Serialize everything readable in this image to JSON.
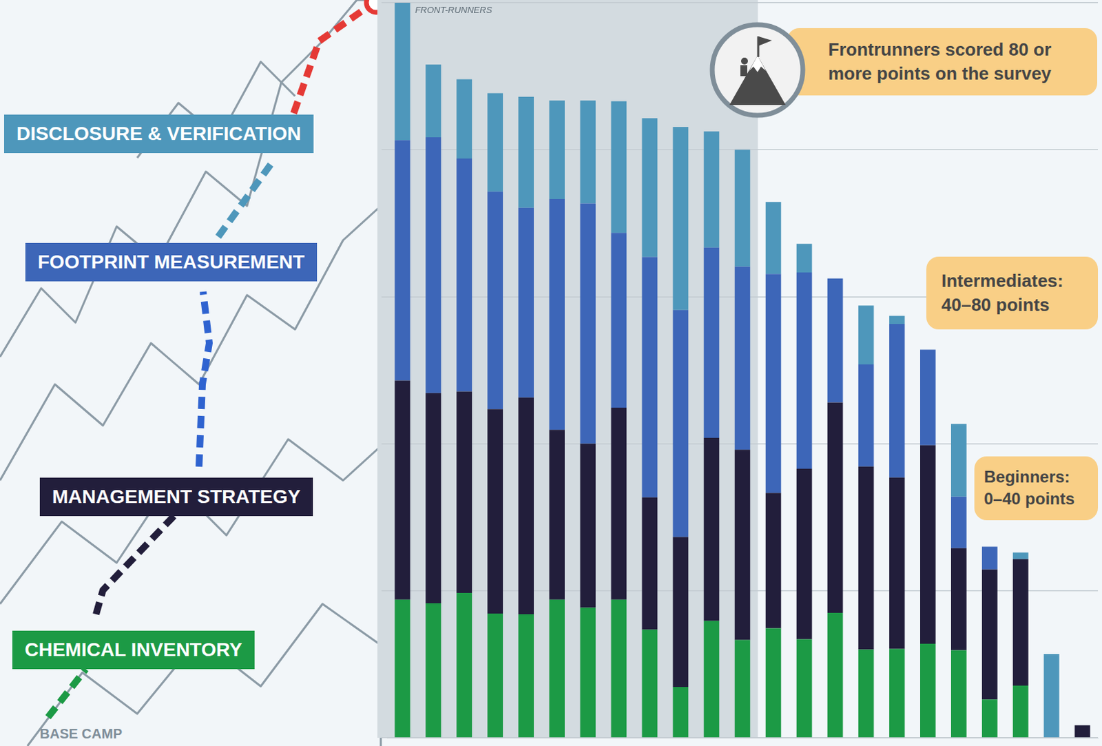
{
  "chart_data": {
    "type": "bar",
    "stacked": true,
    "categories": [
      null,
      null,
      null,
      null,
      null,
      null,
      null,
      null,
      null,
      null,
      null,
      null,
      null,
      null,
      null,
      null,
      null,
      null,
      null,
      null,
      null,
      null,
      null
    ],
    "series": [
      {
        "name": "CHEMICAL INVENTORY",
        "color": "#1c9a45",
        "values": [
          18.8,
          18.3,
          19.7,
          16.9,
          16.8,
          18.8,
          17.7,
          18.8,
          14.7,
          6.9,
          15.9,
          13.3,
          14.9,
          13.4,
          17.0,
          12.0,
          12.1,
          12.8,
          11.9,
          5.2,
          7.1,
          0,
          0
        ]
      },
      {
        "name": "MANAGEMENT STRATEGY",
        "color": "#221e3b",
        "values": [
          29.8,
          28.6,
          27.4,
          27.8,
          29.5,
          23.1,
          22.3,
          26.1,
          18.0,
          20.4,
          24.9,
          25.9,
          18.4,
          23.2,
          28.6,
          24.9,
          23.3,
          27.0,
          13.9,
          17.7,
          17.2,
          0,
          1.7
        ]
      },
      {
        "name": "FOOTPRINT MEASUREMENT",
        "color": "#3d66b8",
        "values": [
          32.7,
          34.8,
          31.7,
          29.6,
          25.8,
          31.4,
          32.7,
          23.8,
          32.7,
          30.9,
          25.9,
          24.9,
          29.8,
          26.7,
          16.9,
          13.9,
          20.9,
          13.0,
          7.0,
          3.1,
          0,
          0,
          0
        ]
      },
      {
        "name": "DISCLOSURE & VERIFICATION",
        "color": "#4e97bb",
        "values": [
          18.7,
          9.9,
          10.8,
          13.4,
          15.1,
          13.4,
          14.0,
          17.9,
          18.9,
          24.9,
          15.8,
          15.9,
          9.8,
          3.9,
          0,
          8.0,
          1.1,
          0,
          9.9,
          0,
          0.9,
          11.4,
          0
        ]
      }
    ],
    "ylim": [
      0,
      100
    ],
    "yticks": [
      0,
      20,
      40,
      60,
      80,
      100
    ],
    "grid": true,
    "tick_labels": false,
    "band": {
      "label": "FRONT-RUNNERS",
      "min": 80
    },
    "annotations": [
      "Frontrunners scored 80 or more points on the survey",
      "Intermediates: 40–80 points",
      "Beginners: 0–40 points"
    ],
    "start_label": "BASE CAMP"
  }
}
